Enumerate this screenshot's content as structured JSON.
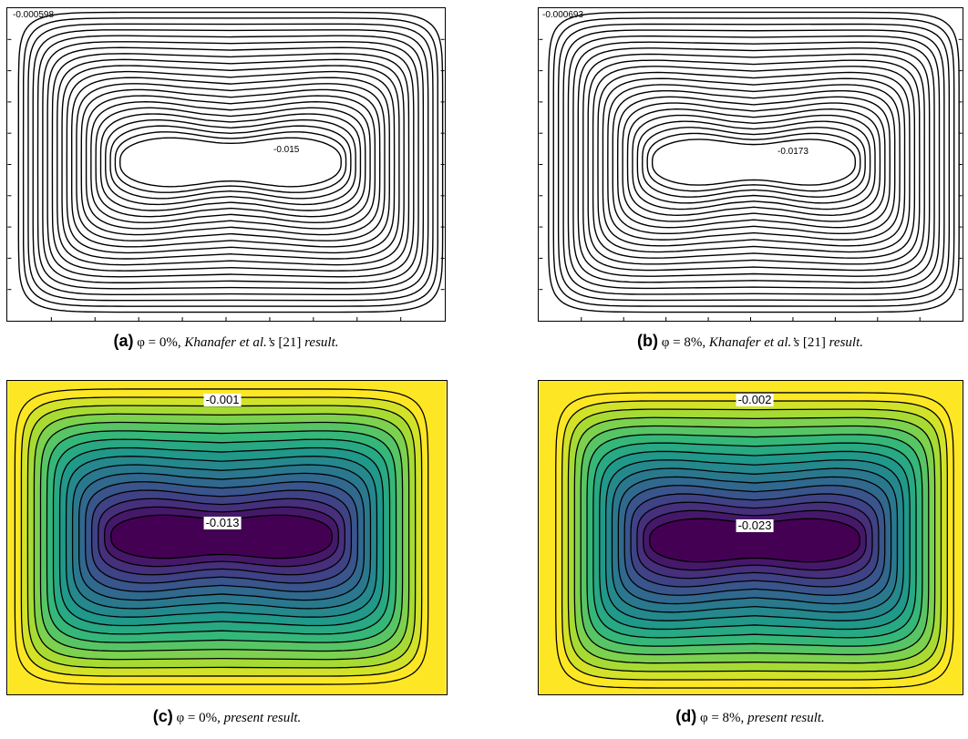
{
  "panels": {
    "a": {
      "min_label": "-0.000598",
      "max_label": "-0.015",
      "caption": {
        "letter": "(a)",
        "condition": "φ = 0%, ",
        "author": "Khanafer et al.’s",
        "ref": " [21] ",
        "tail": "result."
      }
    },
    "b": {
      "min_label": "-0.000693",
      "max_label": "-0.0173",
      "caption": {
        "letter": "(b)",
        "condition": "φ = 8%, ",
        "author": "Khanafer et al.’s",
        "ref": " [21] ",
        "tail": "result."
      }
    },
    "c": {
      "outer_label": "-0.001",
      "inner_label": "-0.013",
      "caption": {
        "letter": "(c)",
        "condition": "φ = 0%, ",
        "tail": "present result."
      }
    },
    "d": {
      "outer_label": "-0.002",
      "inner_label": "-0.023",
      "caption": {
        "letter": "(d)",
        "condition": "φ = 8%, ",
        "tail": "present result."
      }
    }
  },
  "colormap": [
    "#fde725",
    "#b5de2b",
    "#6ece58",
    "#35b779",
    "#1f9e89",
    "#26828e",
    "#31688e",
    "#3e4989",
    "#482878",
    "#440154"
  ]
}
